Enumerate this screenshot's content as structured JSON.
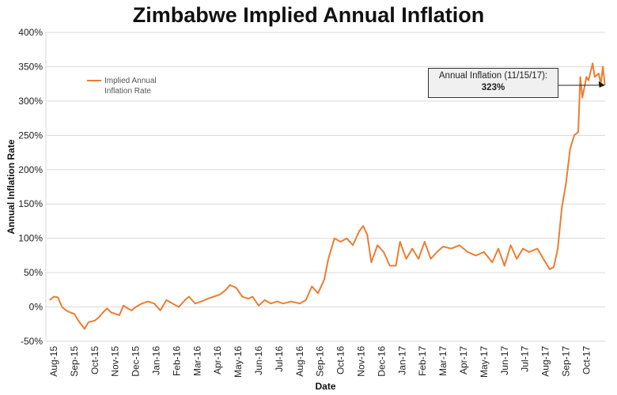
{
  "chart_data": {
    "type": "line",
    "title": "Zimbabwe Implied Annual Inflation",
    "xlabel": "Date",
    "ylabel": "Annual Inflation Rate",
    "ylim": [
      -50,
      400
    ],
    "yticks": [
      "-50%",
      "0%",
      "50%",
      "100%",
      "150%",
      "200%",
      "250%",
      "300%",
      "350%",
      "400%"
    ],
    "xticks": [
      "Aug-15",
      "Sep-15",
      "Oct-15",
      "Nov-15",
      "Dec-15",
      "Jan-16",
      "Feb-16",
      "Mar-16",
      "Apr-16",
      "May-16",
      "Jun-16",
      "Jul-16",
      "Aug-16",
      "Sep-16",
      "Oct-16",
      "Nov-16",
      "Dec-16",
      "Jan-17",
      "Feb-17",
      "Mar-17",
      "Apr-17",
      "May-17",
      "Jun-17",
      "Jul-17",
      "Aug-17",
      "Sep-17",
      "Oct-17"
    ],
    "grid": true,
    "legend_position": "top-left",
    "series": [
      {
        "name": "Implied Annual Inflation Rate",
        "color": "#ed7d31",
        "x_unit": "months since Aug-15",
        "points": [
          [
            -0.2,
            10
          ],
          [
            0,
            15
          ],
          [
            0.2,
            14
          ],
          [
            0.4,
            0
          ],
          [
            0.6,
            -5
          ],
          [
            0.8,
            -8
          ],
          [
            1.0,
            -10
          ],
          [
            1.2,
            -20
          ],
          [
            1.4,
            -28
          ],
          [
            1.5,
            -32
          ],
          [
            1.7,
            -22
          ],
          [
            2.0,
            -20
          ],
          [
            2.2,
            -15
          ],
          [
            2.4,
            -8
          ],
          [
            2.6,
            -2
          ],
          [
            2.8,
            -8
          ],
          [
            3.0,
            -10
          ],
          [
            3.2,
            -12
          ],
          [
            3.4,
            2
          ],
          [
            3.6,
            -2
          ],
          [
            3.8,
            -5
          ],
          [
            4.0,
            0
          ],
          [
            4.3,
            5
          ],
          [
            4.6,
            8
          ],
          [
            4.9,
            5
          ],
          [
            5.2,
            -5
          ],
          [
            5.5,
            10
          ],
          [
            5.8,
            5
          ],
          [
            6.1,
            0
          ],
          [
            6.4,
            10
          ],
          [
            6.6,
            15
          ],
          [
            6.9,
            5
          ],
          [
            7.2,
            8
          ],
          [
            7.5,
            12
          ],
          [
            7.8,
            15
          ],
          [
            8.1,
            18
          ],
          [
            8.4,
            25
          ],
          [
            8.6,
            32
          ],
          [
            8.9,
            28
          ],
          [
            9.2,
            15
          ],
          [
            9.5,
            12
          ],
          [
            9.7,
            15
          ],
          [
            10.0,
            2
          ],
          [
            10.3,
            10
          ],
          [
            10.6,
            5
          ],
          [
            10.9,
            8
          ],
          [
            11.2,
            5
          ],
          [
            11.6,
            8
          ],
          [
            12.0,
            5
          ],
          [
            12.3,
            10
          ],
          [
            12.6,
            30
          ],
          [
            12.9,
            20
          ],
          [
            13.2,
            40
          ],
          [
            13.4,
            70
          ],
          [
            13.7,
            100
          ],
          [
            14.0,
            95
          ],
          [
            14.3,
            100
          ],
          [
            14.6,
            90
          ],
          [
            14.9,
            110
          ],
          [
            15.1,
            118
          ],
          [
            15.3,
            105
          ],
          [
            15.5,
            65
          ],
          [
            15.8,
            90
          ],
          [
            16.1,
            80
          ],
          [
            16.4,
            60
          ],
          [
            16.7,
            60
          ],
          [
            16.9,
            95
          ],
          [
            17.2,
            70
          ],
          [
            17.5,
            85
          ],
          [
            17.8,
            70
          ],
          [
            18.1,
            95
          ],
          [
            18.4,
            70
          ],
          [
            18.7,
            80
          ],
          [
            19.0,
            88
          ],
          [
            19.4,
            85
          ],
          [
            19.8,
            90
          ],
          [
            20.2,
            80
          ],
          [
            20.6,
            75
          ],
          [
            21.0,
            80
          ],
          [
            21.4,
            65
          ],
          [
            21.7,
            85
          ],
          [
            22.0,
            60
          ],
          [
            22.3,
            90
          ],
          [
            22.6,
            70
          ],
          [
            22.9,
            85
          ],
          [
            23.2,
            80
          ],
          [
            23.6,
            85
          ],
          [
            23.9,
            70
          ],
          [
            24.2,
            55
          ],
          [
            24.4,
            58
          ],
          [
            24.6,
            85
          ],
          [
            24.8,
            145
          ],
          [
            25.0,
            180
          ],
          [
            25.2,
            230
          ],
          [
            25.4,
            250
          ],
          [
            25.6,
            255
          ],
          [
            25.7,
            335
          ],
          [
            25.8,
            305
          ],
          [
            26.0,
            335
          ],
          [
            26.1,
            330
          ],
          [
            26.3,
            355
          ],
          [
            26.4,
            335
          ],
          [
            26.6,
            340
          ],
          [
            26.7,
            325
          ],
          [
            26.8,
            350
          ],
          [
            26.9,
            323
          ]
        ]
      }
    ],
    "legend": [
      "Implied Annual",
      "Inflation Rate"
    ],
    "annotation": {
      "label": "Annual Inflation (11/15/17):",
      "value": "323%"
    }
  }
}
